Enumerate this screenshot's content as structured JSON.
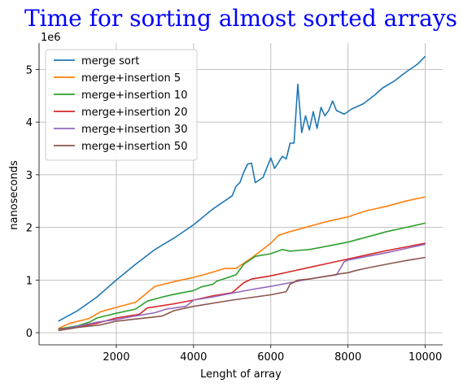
{
  "chart_data": {
    "type": "line",
    "title": "Time for sorting almost sorted arrays",
    "xlabel": "Lenght of array",
    "ylabel": "nanoseconds",
    "y_offset_label": "1e6",
    "xlim": [
      0,
      10450
    ],
    "ylim": [
      -0.23,
      5.5
    ],
    "x_ticks": [
      2000,
      4000,
      6000,
      8000,
      10000
    ],
    "x_tick_labels": [
      "2000",
      "4000",
      "6000",
      "8000",
      "10000"
    ],
    "y_ticks": [
      0,
      1,
      2,
      3,
      4,
      5
    ],
    "y_tick_labels": [
      "0",
      "1",
      "2",
      "3",
      "4",
      "5"
    ],
    "grid": true,
    "legend_position": "upper-left",
    "colors": {
      "merge sort": "#1f77b4",
      "merge+insertion 5": "#ff7f0e",
      "merge+insertion 10": "#2ca02c",
      "merge+insertion 20": "#d62728",
      "merge+insertion 30": "#9467bd",
      "merge+insertion 50": "#8c564b"
    },
    "series": [
      {
        "name": "merge sort",
        "points": [
          [
            500,
            0.22
          ],
          [
            1000,
            0.42
          ],
          [
            1500,
            0.68
          ],
          [
            2000,
            1.0
          ],
          [
            2500,
            1.3
          ],
          [
            3000,
            1.58
          ],
          [
            3500,
            1.8
          ],
          [
            4000,
            2.05
          ],
          [
            4500,
            2.35
          ],
          [
            5000,
            2.6
          ],
          [
            5100,
            2.78
          ],
          [
            5200,
            2.85
          ],
          [
            5300,
            3.05
          ],
          [
            5400,
            3.2
          ],
          [
            5500,
            3.22
          ],
          [
            5600,
            2.85
          ],
          [
            5800,
            2.95
          ],
          [
            6000,
            3.32
          ],
          [
            6100,
            3.12
          ],
          [
            6300,
            3.35
          ],
          [
            6400,
            3.3
          ],
          [
            6500,
            3.6
          ],
          [
            6600,
            3.6
          ],
          [
            6700,
            4.72
          ],
          [
            6800,
            3.8
          ],
          [
            6900,
            4.12
          ],
          [
            7000,
            3.85
          ],
          [
            7100,
            4.2
          ],
          [
            7200,
            3.88
          ],
          [
            7300,
            4.28
          ],
          [
            7400,
            4.12
          ],
          [
            7500,
            4.22
          ],
          [
            7600,
            4.4
          ],
          [
            7700,
            4.22
          ],
          [
            7900,
            4.15
          ],
          [
            8100,
            4.25
          ],
          [
            8400,
            4.35
          ],
          [
            8700,
            4.52
          ],
          [
            8900,
            4.65
          ],
          [
            9200,
            4.78
          ],
          [
            9500,
            4.95
          ],
          [
            9800,
            5.1
          ],
          [
            10000,
            5.25
          ]
        ]
      },
      {
        "name": "merge+insertion 5",
        "points": [
          [
            500,
            0.08
          ],
          [
            800,
            0.18
          ],
          [
            1300,
            0.27
          ],
          [
            1600,
            0.4
          ],
          [
            2000,
            0.48
          ],
          [
            2500,
            0.58
          ],
          [
            3000,
            0.88
          ],
          [
            3500,
            0.97
          ],
          [
            4000,
            1.05
          ],
          [
            4500,
            1.15
          ],
          [
            4800,
            1.22
          ],
          [
            5100,
            1.22
          ],
          [
            5500,
            1.42
          ],
          [
            6000,
            1.7
          ],
          [
            6200,
            1.85
          ],
          [
            6500,
            1.92
          ],
          [
            7000,
            2.02
          ],
          [
            7500,
            2.12
          ],
          [
            8000,
            2.2
          ],
          [
            8200,
            2.25
          ],
          [
            8500,
            2.32
          ],
          [
            9000,
            2.4
          ],
          [
            9500,
            2.5
          ],
          [
            10000,
            2.58
          ]
        ]
      },
      {
        "name": "merge+insertion 10",
        "points": [
          [
            500,
            0.07
          ],
          [
            1000,
            0.13
          ],
          [
            1300,
            0.2
          ],
          [
            1500,
            0.28
          ],
          [
            2000,
            0.37
          ],
          [
            2500,
            0.45
          ],
          [
            2800,
            0.6
          ],
          [
            3200,
            0.68
          ],
          [
            3500,
            0.73
          ],
          [
            4000,
            0.8
          ],
          [
            4200,
            0.87
          ],
          [
            4500,
            0.92
          ],
          [
            4600,
            0.98
          ],
          [
            4900,
            1.05
          ],
          [
            5100,
            1.1
          ],
          [
            5300,
            1.3
          ],
          [
            5600,
            1.45
          ],
          [
            6000,
            1.5
          ],
          [
            6300,
            1.58
          ],
          [
            6500,
            1.55
          ],
          [
            6800,
            1.57
          ],
          [
            7000,
            1.58
          ],
          [
            7500,
            1.65
          ],
          [
            8000,
            1.72
          ],
          [
            8500,
            1.82
          ],
          [
            9000,
            1.92
          ],
          [
            9500,
            2.0
          ],
          [
            10000,
            2.08
          ]
        ]
      },
      {
        "name": "merge+insertion 20",
        "points": [
          [
            500,
            0.06
          ],
          [
            1000,
            0.11
          ],
          [
            1500,
            0.18
          ],
          [
            2000,
            0.28
          ],
          [
            2600,
            0.35
          ],
          [
            2800,
            0.47
          ],
          [
            3500,
            0.55
          ],
          [
            4000,
            0.62
          ],
          [
            4500,
            0.7
          ],
          [
            5000,
            0.76
          ],
          [
            5300,
            0.95
          ],
          [
            5500,
            1.02
          ],
          [
            6000,
            1.08
          ],
          [
            6500,
            1.16
          ],
          [
            7000,
            1.24
          ],
          [
            7500,
            1.32
          ],
          [
            8000,
            1.4
          ],
          [
            8500,
            1.48
          ],
          [
            9000,
            1.56
          ],
          [
            9500,
            1.63
          ],
          [
            10000,
            1.7
          ]
        ]
      },
      {
        "name": "merge+insertion 30",
        "points": [
          [
            500,
            0.05
          ],
          [
            1000,
            0.12
          ],
          [
            1500,
            0.2
          ],
          [
            2000,
            0.25
          ],
          [
            2500,
            0.32
          ],
          [
            3000,
            0.38
          ],
          [
            3300,
            0.45
          ],
          [
            3800,
            0.5
          ],
          [
            4000,
            0.62
          ],
          [
            4500,
            0.68
          ],
          [
            5000,
            0.75
          ],
          [
            5500,
            0.82
          ],
          [
            6000,
            0.88
          ],
          [
            6500,
            0.95
          ],
          [
            7000,
            1.02
          ],
          [
            7500,
            1.08
          ],
          [
            7700,
            1.1
          ],
          [
            7800,
            1.22
          ],
          [
            7900,
            1.35
          ],
          [
            8000,
            1.38
          ],
          [
            8500,
            1.45
          ],
          [
            9000,
            1.52
          ],
          [
            9500,
            1.6
          ],
          [
            10000,
            1.68
          ]
        ]
      },
      {
        "name": "merge+insertion 50",
        "points": [
          [
            500,
            0.04
          ],
          [
            1000,
            0.1
          ],
          [
            1600,
            0.15
          ],
          [
            2000,
            0.22
          ],
          [
            3000,
            0.3
          ],
          [
            3200,
            0.32
          ],
          [
            3500,
            0.42
          ],
          [
            4000,
            0.5
          ],
          [
            5000,
            0.62
          ],
          [
            6000,
            0.72
          ],
          [
            6400,
            0.78
          ],
          [
            6500,
            0.92
          ],
          [
            6700,
            1.0
          ],
          [
            7000,
            1.02
          ],
          [
            7500,
            1.08
          ],
          [
            7800,
            1.12
          ],
          [
            8000,
            1.14
          ],
          [
            8200,
            1.18
          ],
          [
            8500,
            1.23
          ],
          [
            9000,
            1.3
          ],
          [
            9500,
            1.37
          ],
          [
            10000,
            1.43
          ]
        ]
      }
    ]
  }
}
